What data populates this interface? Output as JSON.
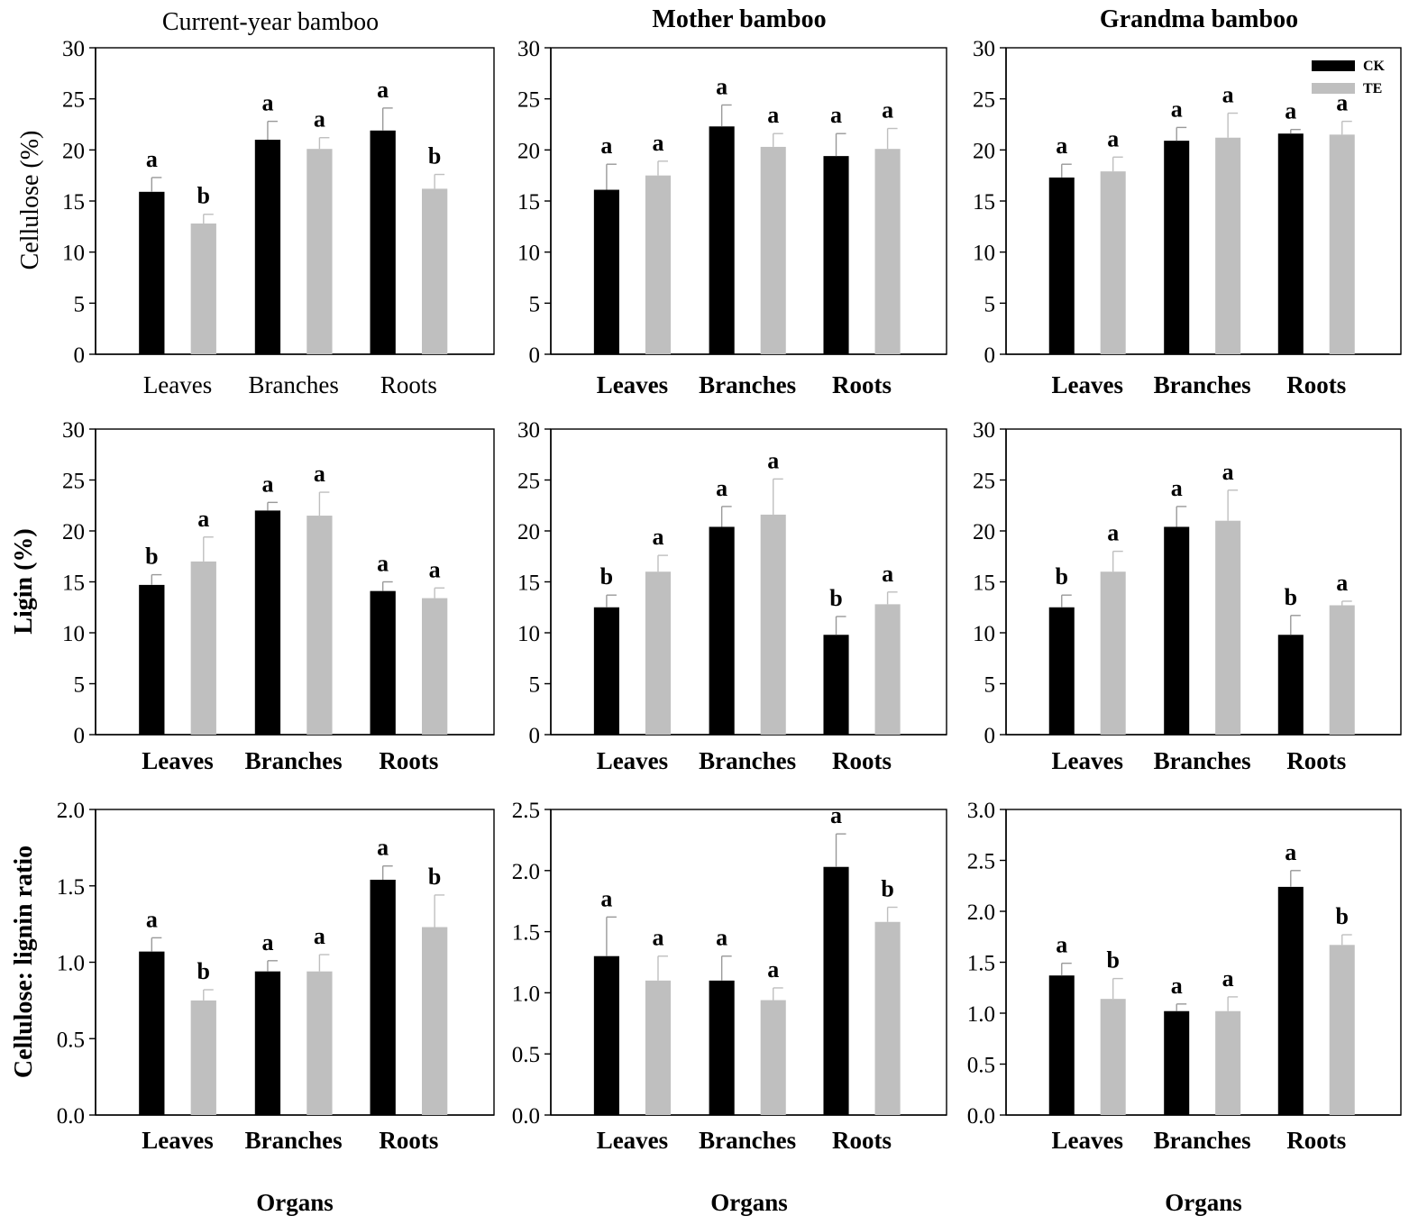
{
  "chart_data": {
    "type": "bar",
    "column_titles": [
      "Current-year bamboo",
      "Mother bamboo",
      "Grandma bamboo"
    ],
    "row_ylabels": [
      "Cellulose (%)",
      "Ligin (%)",
      "Cellulose: lignin ratio"
    ],
    "xlabel": "Organs",
    "categories": [
      "Leaves",
      "Branches",
      "Roots"
    ],
    "legend": [
      {
        "name": "CK",
        "color": "#000000"
      },
      {
        "name": "TE",
        "color": "#bfbfbf"
      }
    ],
    "panels": [
      {
        "row": 0,
        "col": 0,
        "ylim": [
          0,
          30
        ],
        "ticks": [
          "0",
          "5",
          "10",
          "15",
          "20",
          "25",
          "30"
        ],
        "series": [
          {
            "name": "CK",
            "values": [
              15.9,
              21.0,
              21.9
            ],
            "errors": [
              1.4,
              1.8,
              2.2
            ],
            "letters": [
              "a",
              "a",
              "a"
            ]
          },
          {
            "name": "TE",
            "values": [
              12.8,
              20.1,
              16.2
            ],
            "errors": [
              0.9,
              1.1,
              1.4
            ],
            "letters": [
              "b",
              "a",
              "b"
            ]
          }
        ]
      },
      {
        "row": 0,
        "col": 1,
        "ylim": [
          0,
          30
        ],
        "ticks": [
          "0",
          "5",
          "10",
          "15",
          "20",
          "25",
          "30"
        ],
        "series": [
          {
            "name": "CK",
            "values": [
              16.1,
              22.3,
              19.4
            ],
            "errors": [
              2.5,
              2.1,
              2.2
            ],
            "letters": [
              "a",
              "a",
              "a"
            ]
          },
          {
            "name": "TE",
            "values": [
              17.5,
              20.3,
              20.1
            ],
            "errors": [
              1.4,
              1.3,
              2.0
            ],
            "letters": [
              "a",
              "a",
              "a"
            ]
          }
        ]
      },
      {
        "row": 0,
        "col": 2,
        "ylim": [
          0,
          30
        ],
        "ticks": [
          "0",
          "5",
          "10",
          "15",
          "20",
          "25",
          "30"
        ],
        "series": [
          {
            "name": "CK",
            "values": [
              17.3,
              20.9,
              21.6
            ],
            "errors": [
              1.3,
              1.3,
              0.4
            ],
            "letters": [
              "a",
              "a",
              "a"
            ]
          },
          {
            "name": "TE",
            "values": [
              17.9,
              21.2,
              21.5
            ],
            "errors": [
              1.4,
              2.4,
              1.3
            ],
            "letters": [
              "a",
              "a",
              "a"
            ]
          }
        ]
      },
      {
        "row": 1,
        "col": 0,
        "ylim": [
          0,
          30
        ],
        "ticks": [
          "0",
          "5",
          "10",
          "15",
          "20",
          "25",
          "30"
        ],
        "series": [
          {
            "name": "CK",
            "values": [
              14.7,
              22.0,
              14.1
            ],
            "errors": [
              1.0,
              0.8,
              0.9
            ],
            "letters": [
              "b",
              "a",
              "a"
            ]
          },
          {
            "name": "TE",
            "values": [
              17.0,
              21.5,
              13.4
            ],
            "errors": [
              2.4,
              2.3,
              1.0
            ],
            "letters": [
              "a",
              "a",
              "a"
            ]
          }
        ]
      },
      {
        "row": 1,
        "col": 1,
        "ylim": [
          0,
          30
        ],
        "ticks": [
          "0",
          "5",
          "10",
          "15",
          "20",
          "25",
          "30"
        ],
        "series": [
          {
            "name": "CK",
            "values": [
              12.5,
              20.4,
              9.8
            ],
            "errors": [
              1.2,
              2.0,
              1.8
            ],
            "letters": [
              "b",
              "a",
              "b"
            ]
          },
          {
            "name": "TE",
            "values": [
              16.0,
              21.6,
              12.8
            ],
            "errors": [
              1.6,
              3.5,
              1.2
            ],
            "letters": [
              "a",
              "a",
              "a"
            ]
          }
        ]
      },
      {
        "row": 1,
        "col": 2,
        "ylim": [
          0,
          30
        ],
        "ticks": [
          "0",
          "5",
          "10",
          "15",
          "20",
          "25",
          "30"
        ],
        "series": [
          {
            "name": "CK",
            "values": [
              12.5,
              20.4,
              9.8
            ],
            "errors": [
              1.2,
              2.0,
              1.9
            ],
            "letters": [
              "b",
              "a",
              "b"
            ]
          },
          {
            "name": "TE",
            "values": [
              16.0,
              21.0,
              12.7
            ],
            "errors": [
              2.0,
              3.0,
              0.4
            ],
            "letters": [
              "a",
              "a",
              "a"
            ]
          }
        ]
      },
      {
        "row": 2,
        "col": 0,
        "ylim": [
          0,
          2.0
        ],
        "ticks": [
          "0.0",
          "0.5",
          "1.0",
          "1.5",
          "2.0"
        ],
        "series": [
          {
            "name": "CK",
            "values": [
              1.07,
              0.94,
              1.54
            ],
            "errors": [
              0.09,
              0.07,
              0.09
            ],
            "letters": [
              "a",
              "a",
              "a"
            ]
          },
          {
            "name": "TE",
            "values": [
              0.75,
              0.94,
              1.23
            ],
            "errors": [
              0.07,
              0.11,
              0.21
            ],
            "letters": [
              "b",
              "a",
              "b"
            ]
          }
        ]
      },
      {
        "row": 2,
        "col": 1,
        "ylim": [
          0,
          2.5
        ],
        "ticks": [
          "0.0",
          "0.5",
          "1.0",
          "1.5",
          "2.0",
          "2.5"
        ],
        "series": [
          {
            "name": "CK",
            "values": [
              1.3,
              1.1,
              2.03
            ],
            "errors": [
              0.32,
              0.2,
              0.27
            ],
            "letters": [
              "a",
              "a",
              "a"
            ]
          },
          {
            "name": "TE",
            "values": [
              1.1,
              0.94,
              1.58
            ],
            "errors": [
              0.2,
              0.1,
              0.12
            ],
            "letters": [
              "a",
              "a",
              "b"
            ]
          }
        ]
      },
      {
        "row": 2,
        "col": 2,
        "ylim": [
          0,
          3.0
        ],
        "ticks": [
          "0.0",
          "0.5",
          "1.0",
          "1.5",
          "2.0",
          "2.5",
          "3.0"
        ],
        "series": [
          {
            "name": "CK",
            "values": [
              1.37,
              1.02,
              2.24
            ],
            "errors": [
              0.12,
              0.07,
              0.16
            ],
            "letters": [
              "a",
              "a",
              "a"
            ]
          },
          {
            "name": "TE",
            "values": [
              1.14,
              1.02,
              1.67
            ],
            "errors": [
              0.2,
              0.14,
              0.1
            ],
            "letters": [
              "b",
              "a",
              "b"
            ]
          }
        ]
      }
    ]
  }
}
